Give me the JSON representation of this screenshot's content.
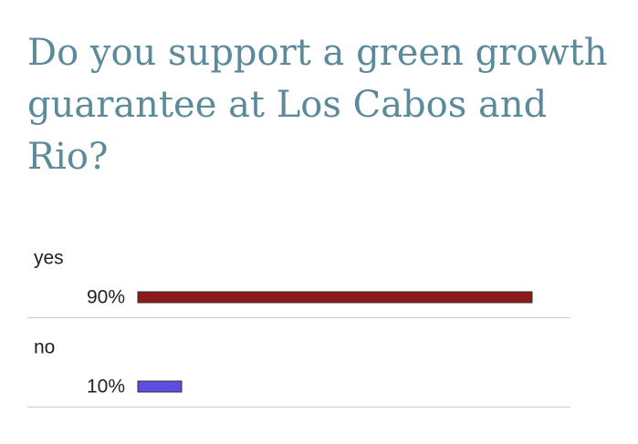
{
  "chart_data": {
    "type": "bar",
    "orientation": "horizontal",
    "title": "Do you support a green growth guarantee at Los Cabos and Rio?",
    "categories": [
      "yes",
      "no"
    ],
    "values": [
      90,
      10
    ],
    "value_labels": [
      "90%",
      "10%"
    ],
    "colors": [
      "#8b1a1a",
      "#5b4de0"
    ]
  }
}
